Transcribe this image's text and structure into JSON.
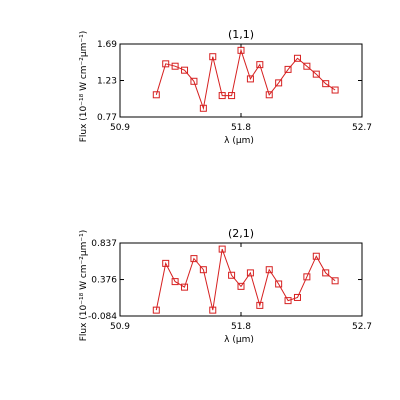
{
  "chart_data": [
    {
      "type": "line",
      "title": "(1,1)",
      "xlabel": "λ (μm)",
      "ylabel": "Flux (10⁻¹⁸ W cm⁻²μm⁻¹)",
      "xlim": [
        50.9,
        52.7
      ],
      "ylim": [
        0.77,
        1.69
      ],
      "xticks": [
        "50.9",
        "51.8",
        "52.7"
      ],
      "yticks": [
        "0.77",
        "1.23",
        "1.69"
      ],
      "color": "#d62020",
      "marker": "square",
      "x": [
        51.17,
        51.24,
        51.31,
        51.38,
        51.45,
        51.52,
        51.59,
        51.66,
        51.73,
        51.8,
        51.87,
        51.94,
        52.01,
        52.08,
        52.15,
        52.22,
        52.29,
        52.36,
        52.43,
        52.5
      ],
      "y": [
        1.05,
        1.44,
        1.41,
        1.36,
        1.22,
        0.88,
        1.53,
        1.04,
        1.04,
        1.61,
        1.25,
        1.43,
        1.05,
        1.2,
        1.37,
        1.51,
        1.41,
        1.31,
        1.19,
        1.11
      ]
    },
    {
      "type": "line",
      "title": "(2,1)",
      "xlabel": "λ (μm)",
      "ylabel": "Flux (10⁻¹⁸ W cm⁻²μm⁻¹)",
      "xlim": [
        50.9,
        52.7
      ],
      "ylim": [
        -0.084,
        0.837
      ],
      "xticks": [
        "50.9",
        "51.8",
        "52.7"
      ],
      "yticks": [
        "-0.084",
        "0.376",
        "0.837"
      ],
      "color": "#d62020",
      "marker": "square",
      "x": [
        51.17,
        51.24,
        51.31,
        51.38,
        51.45,
        51.52,
        51.59,
        51.66,
        51.73,
        51.8,
        51.87,
        51.94,
        52.01,
        52.08,
        52.15,
        52.22,
        52.29,
        52.36,
        52.43,
        52.5
      ],
      "y": [
        -0.01,
        0.58,
        0.35,
        0.28,
        0.64,
        0.5,
        -0.01,
        0.76,
        0.43,
        0.29,
        0.46,
        0.05,
        0.5,
        0.32,
        0.11,
        0.15,
        0.41,
        0.67,
        0.46,
        0.36
      ]
    }
  ]
}
